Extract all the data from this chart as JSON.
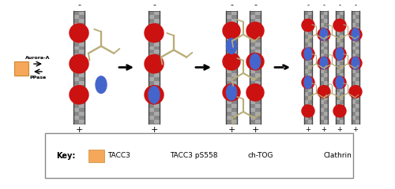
{
  "fig_width": 5.0,
  "fig_height": 2.4,
  "dpi": 100,
  "bg_color": "#ffffff",
  "tacc3_color": "#F5A85A",
  "red_color": "#CC1111",
  "blue_color": "#4466CC",
  "clathrin_color": "#B8AD78",
  "mt_light": "#CCCCCC",
  "mt_dark": "#555555",
  "mt_mid": "#999999",
  "key_label": "Key:",
  "tacc3_label": "TACC3",
  "tacc3ps_label": "TACC3 pS558",
  "chtog_label": "ch-TOG",
  "clathrin_label": "Clathrin",
  "aurora_label": "Aurora-A",
  "ppase_label": "PPase"
}
